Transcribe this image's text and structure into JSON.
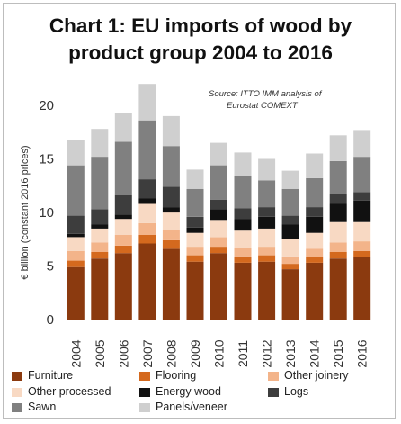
{
  "title_lines": [
    "Chart 1: EU imports of wood by",
    "product group 2004 to 2016"
  ],
  "source_lines": [
    "Source: ITTO IMM analysis of",
    "Eurostat COMEXT"
  ],
  "chart_data": {
    "type": "bar",
    "stacked": true,
    "categories": [
      "2004",
      "2005",
      "2006",
      "2007",
      "2008",
      "2009",
      "2010",
      "2011",
      "2012",
      "2013",
      "2014",
      "2015",
      "2016"
    ],
    "ylabel": "€ billion (constant 2016 prices)",
    "ylim": [
      0,
      20
    ],
    "yticks": [
      0,
      5,
      10,
      15,
      20
    ],
    "grid": false,
    "legend_position": "bottom",
    "series": [
      {
        "name": "Furniture",
        "color": "#8b3a0f",
        "values": [
          4.9,
          5.7,
          6.2,
          7.1,
          6.6,
          5.4,
          6.2,
          5.3,
          5.4,
          4.7,
          5.3,
          5.7,
          5.8
        ]
      },
      {
        "name": "Flooring",
        "color": "#d4691e",
        "values": [
          0.6,
          0.6,
          0.7,
          0.8,
          0.8,
          0.6,
          0.6,
          0.6,
          0.6,
          0.5,
          0.5,
          0.6,
          0.6
        ]
      },
      {
        "name": "Other joinery",
        "color": "#f3b48a",
        "values": [
          0.9,
          0.9,
          1.0,
          1.1,
          1.0,
          0.8,
          0.9,
          0.8,
          0.8,
          0.7,
          0.8,
          0.9,
          0.9
        ]
      },
      {
        "name": "Other processed",
        "color": "#f8d9c3",
        "values": [
          1.3,
          1.3,
          1.5,
          1.8,
          1.6,
          1.3,
          1.6,
          1.6,
          1.7,
          1.6,
          1.5,
          1.9,
          1.8
        ]
      },
      {
        "name": "Energy wood",
        "color": "#111111",
        "values": [
          0.3,
          0.4,
          0.4,
          0.5,
          0.5,
          0.5,
          1.0,
          1.1,
          1.1,
          1.4,
          1.5,
          1.7,
          2.0
        ]
      },
      {
        "name": "Logs",
        "color": "#3d3d3d",
        "values": [
          1.7,
          1.4,
          1.8,
          1.8,
          1.9,
          1.0,
          0.9,
          1.0,
          0.9,
          0.8,
          0.9,
          0.9,
          0.8
        ]
      },
      {
        "name": "Sawn",
        "color": "#808080",
        "values": [
          4.7,
          4.9,
          5.0,
          5.5,
          3.8,
          2.6,
          3.2,
          3.0,
          2.5,
          2.5,
          2.7,
          3.1,
          3.3
        ]
      },
      {
        "name": "Panels/veneer",
        "color": "#cfcfcf",
        "values": [
          2.4,
          2.6,
          2.7,
          3.4,
          2.8,
          1.8,
          2.1,
          2.2,
          2.0,
          1.7,
          2.3,
          2.4,
          2.5
        ]
      }
    ]
  }
}
